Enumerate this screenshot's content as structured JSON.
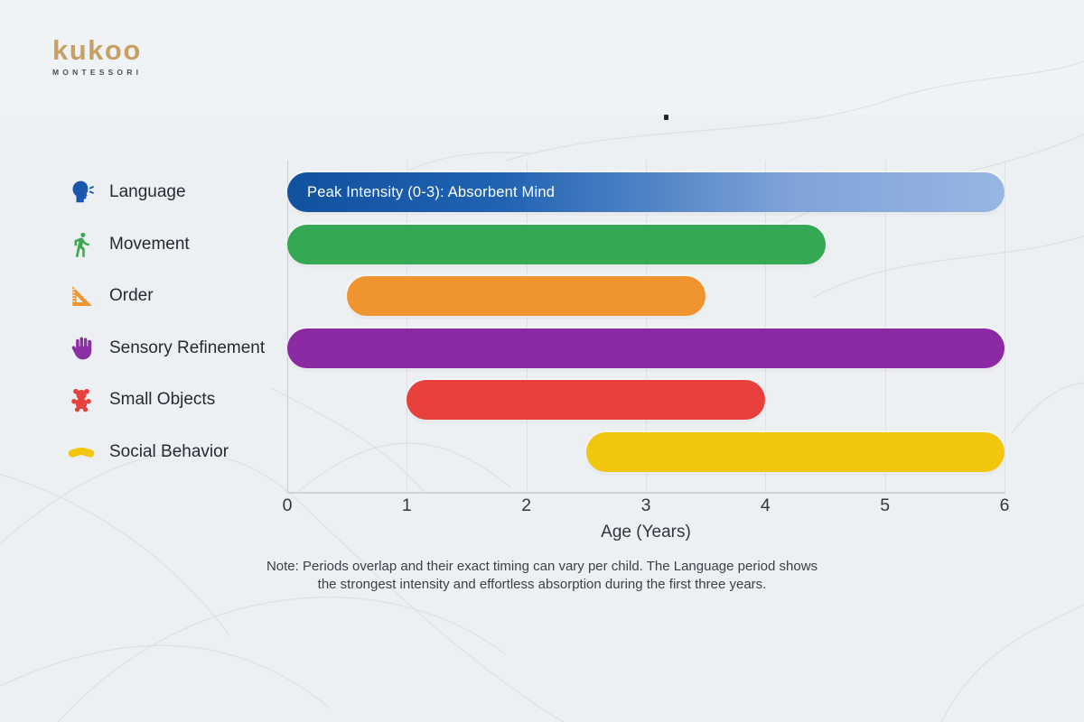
{
  "logo": {
    "name": "kukoo",
    "sub": "MONTESSORI"
  },
  "note": {
    "line1": "Note: Periods overlap and their exact timing can vary per child. The Language period shows",
    "line2": "the strongest intensity and effortless absorption during the first three years."
  },
  "colors": {
    "background": "#edf0f3",
    "gridline": "#dde1e6",
    "axis_text": "#2e3740",
    "logo_gold": "#c7a066"
  },
  "chart_data": {
    "type": "bar",
    "orientation": "horizontal-range",
    "title": "",
    "xlabel": "Age (Years)",
    "ylabel": "",
    "axis": {
      "min": 0,
      "max": 6,
      "ticks": [
        0,
        1,
        2,
        3,
        4,
        5,
        6
      ]
    },
    "grid": "vertical-on",
    "legend_position": "left",
    "rows": [
      {
        "label": "Language",
        "icon": "talking-head-icon",
        "icon_color": "#1b57ae",
        "start": 0,
        "end": 6,
        "color": "#1356a8",
        "gradient": [
          "#11529f",
          "#2063b2",
          "#7fa3d8",
          "#97b6e2"
        ],
        "bar_label": "Peak Intensity (0-3): Absorbent Mind"
      },
      {
        "label": "Movement",
        "icon": "walking-person-icon",
        "icon_color": "#3aa94f",
        "start": 0,
        "end": 4.5,
        "color": "#34a853",
        "bar_label": ""
      },
      {
        "label": "Order",
        "icon": "set-square-icon",
        "icon_color": "#f0942f",
        "start": 0.5,
        "end": 3.5,
        "color": "#f0942f",
        "bar_label": ""
      },
      {
        "label": "Sensory Refinement",
        "icon": "hand-icon",
        "icon_color": "#8b2fa5",
        "start": 0,
        "end": 6,
        "color": "#8b2aa2",
        "bar_label": ""
      },
      {
        "label": "Small Objects",
        "icon": "teddy-bear-icon",
        "icon_color": "#e8403c",
        "start": 1,
        "end": 4,
        "color": "#e8403c",
        "bar_label": ""
      },
      {
        "label": "Social Behavior",
        "icon": "handshake-icon",
        "icon_color": "#f2c50f",
        "start": 2.5,
        "end": 6,
        "color": "#f2c50f",
        "bar_label": ""
      }
    ]
  }
}
